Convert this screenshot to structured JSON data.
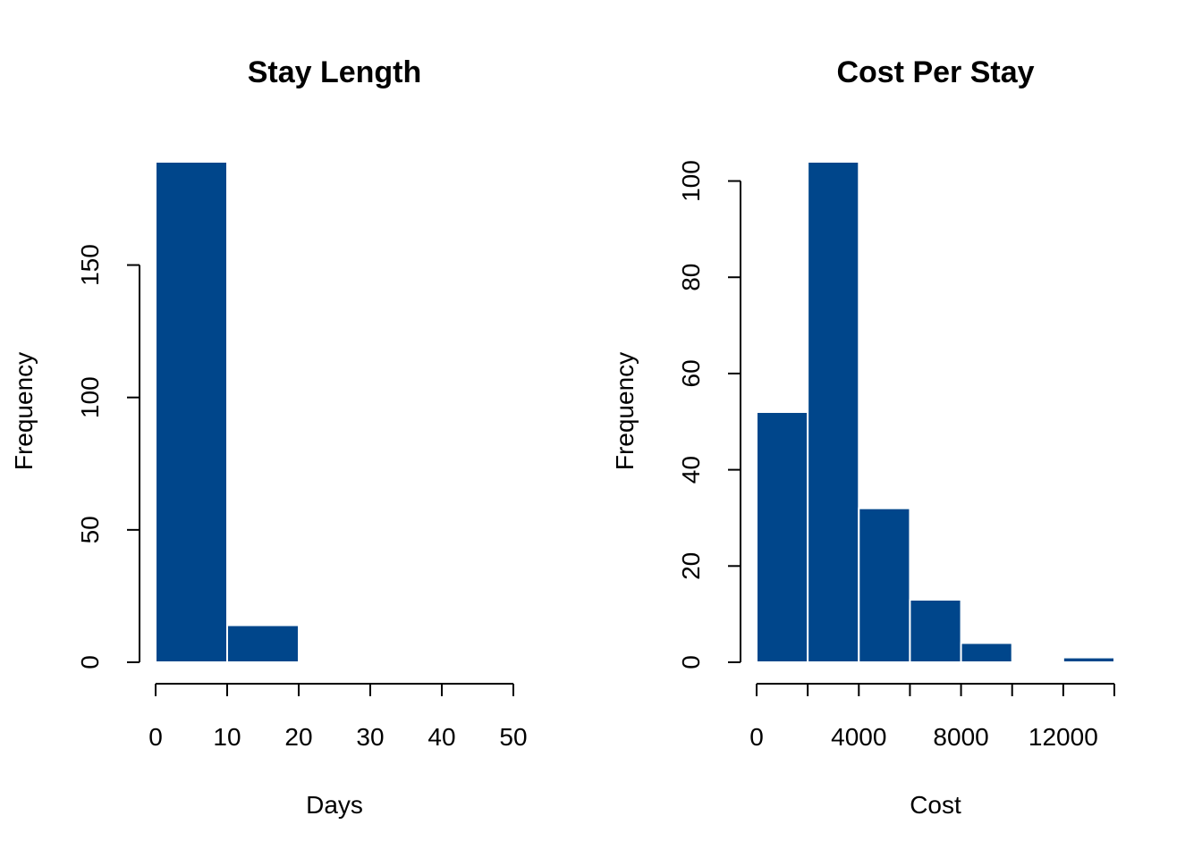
{
  "chart_data": [
    {
      "type": "bar",
      "title": "Stay Length",
      "xlabel": "Days",
      "ylabel": "Frequency",
      "bins": [
        {
          "x0": 0,
          "x1": 10,
          "count": 189
        },
        {
          "x0": 10,
          "x1": 20,
          "count": 14
        },
        {
          "x0": 20,
          "x1": 30,
          "count": 0.5
        },
        {
          "x0": 30,
          "x1": 40,
          "count": 0.5
        },
        {
          "x0": 40,
          "x1": 50,
          "count": 0.5
        }
      ],
      "xlim": [
        0,
        50
      ],
      "ylim": [
        0,
        189
      ],
      "xticks": [
        0,
        10,
        20,
        30,
        40,
        50
      ],
      "yticks": [
        0,
        50,
        100,
        150
      ],
      "grid": false,
      "color": "#00468B"
    },
    {
      "type": "bar",
      "title": "Cost Per Stay",
      "xlabel": "Cost",
      "ylabel": "Frequency",
      "bins": [
        {
          "x0": 0,
          "x1": 2000,
          "count": 52
        },
        {
          "x0": 2000,
          "x1": 4000,
          "count": 104
        },
        {
          "x0": 4000,
          "x1": 6000,
          "count": 32
        },
        {
          "x0": 6000,
          "x1": 8000,
          "count": 13
        },
        {
          "x0": 8000,
          "x1": 10000,
          "count": 4
        },
        {
          "x0": 10000,
          "x1": 12000,
          "count": 0
        },
        {
          "x0": 12000,
          "x1": 14000,
          "count": 1
        }
      ],
      "xlim": [
        0,
        14000
      ],
      "ylim": [
        0,
        104
      ],
      "xticks": [
        0,
        2000,
        4000,
        6000,
        8000,
        10000,
        12000,
        14000
      ],
      "xticklabels": [
        "0",
        "",
        "4000",
        "",
        "8000",
        "",
        "12000",
        ""
      ],
      "yticks": [
        0,
        20,
        40,
        60,
        80,
        100
      ],
      "grid": false,
      "color": "#00468B"
    }
  ]
}
